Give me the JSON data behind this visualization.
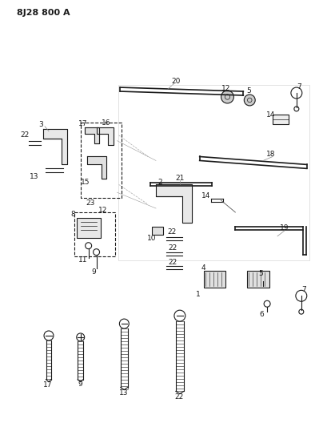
{
  "title": "8J28 800 A",
  "bg_color": "#ffffff",
  "fig_width": 4.09,
  "fig_height": 5.33,
  "dpi": 100
}
